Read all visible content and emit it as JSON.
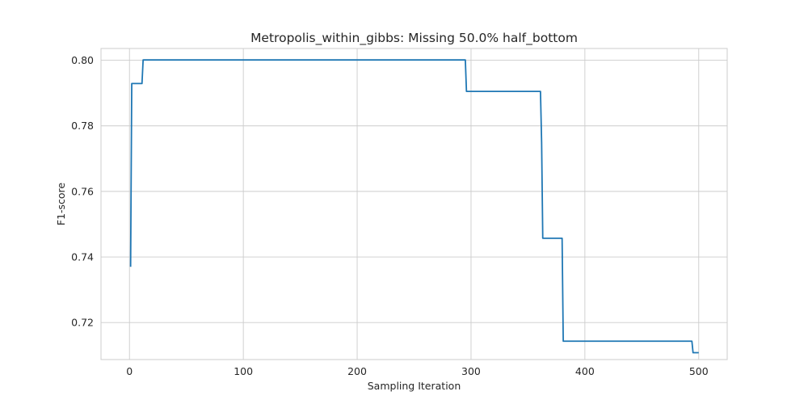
{
  "chart_data": {
    "type": "line",
    "title": "Metropolis_within_gibbs: Missing 50.0% half_bottom",
    "xlabel": "Sampling Iteration",
    "ylabel": "F1-score",
    "xlim": [
      -25,
      525
    ],
    "ylim": [
      0.7087,
      0.8036
    ],
    "xticks": [
      0,
      100,
      200,
      300,
      400,
      500
    ],
    "xtick_labels": [
      "0",
      "100",
      "200",
      "300",
      "400",
      "500"
    ],
    "yticks": [
      0.72,
      0.74,
      0.76,
      0.78,
      0.8
    ],
    "ytick_labels": [
      "0.72",
      "0.74",
      "0.76",
      "0.78",
      "0.80"
    ],
    "grid": true,
    "colors": {
      "series": "#1f77b4",
      "grid": "#cccccc",
      "text": "#262626"
    },
    "series": [
      {
        "x": [
          1,
          2,
          3,
          11,
          12,
          295,
          296,
          361,
          362,
          363,
          380,
          381,
          494,
          495,
          500
        ],
        "y": [
          0.737,
          0.7929,
          0.7929,
          0.7929,
          0.8001,
          0.8001,
          0.7905,
          0.7905,
          0.775,
          0.7457,
          0.7457,
          0.7143,
          0.7143,
          0.7108,
          0.7108
        ]
      }
    ]
  }
}
